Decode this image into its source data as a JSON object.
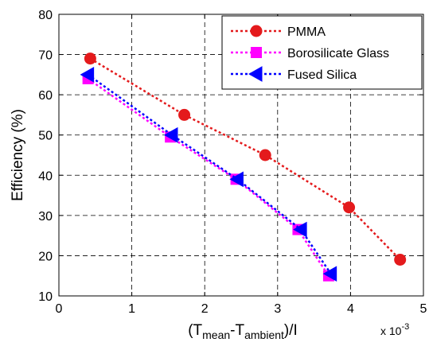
{
  "chart_data": {
    "type": "line",
    "title": "",
    "xlabel": {
      "main": "(T",
      "sub1": "mean",
      "mid": "-T",
      "sub2": "ambient",
      "tail": ")/I"
    },
    "ylabel": "Efficiency (%)",
    "x_scale_note": {
      "base": "x 10",
      "exponent": "-3"
    },
    "xlim": [
      0,
      5
    ],
    "ylim": [
      10,
      80
    ],
    "x_ticks": [
      "0",
      "1",
      "2",
      "3",
      "4",
      "5"
    ],
    "y_ticks": [
      "10",
      "20",
      "30",
      "40",
      "50",
      "60",
      "70",
      "80"
    ],
    "grid": true,
    "legend_position": "top-right",
    "series": [
      {
        "name": "PMMA",
        "color": "#e41a1c",
        "marker": "circle",
        "line_style": "dotted",
        "x": [
          0.43,
          1.72,
          2.83,
          3.98,
          4.68
        ],
        "y": [
          69,
          55,
          45,
          32,
          19
        ]
      },
      {
        "name": "Borosilicate Glass",
        "color": "#ff00ff",
        "marker": "square",
        "line_style": "dotted",
        "x": [
          0.4,
          1.53,
          2.43,
          3.28,
          3.7
        ],
        "y": [
          64,
          49.5,
          39,
          26.5,
          15
        ]
      },
      {
        "name": "Fused Silica",
        "color": "#0000ff",
        "marker": "triangle-left",
        "line_style": "dotted",
        "x": [
          0.4,
          1.55,
          2.45,
          3.32,
          3.73
        ],
        "y": [
          65,
          50,
          39,
          26.5,
          15.5
        ]
      }
    ]
  }
}
